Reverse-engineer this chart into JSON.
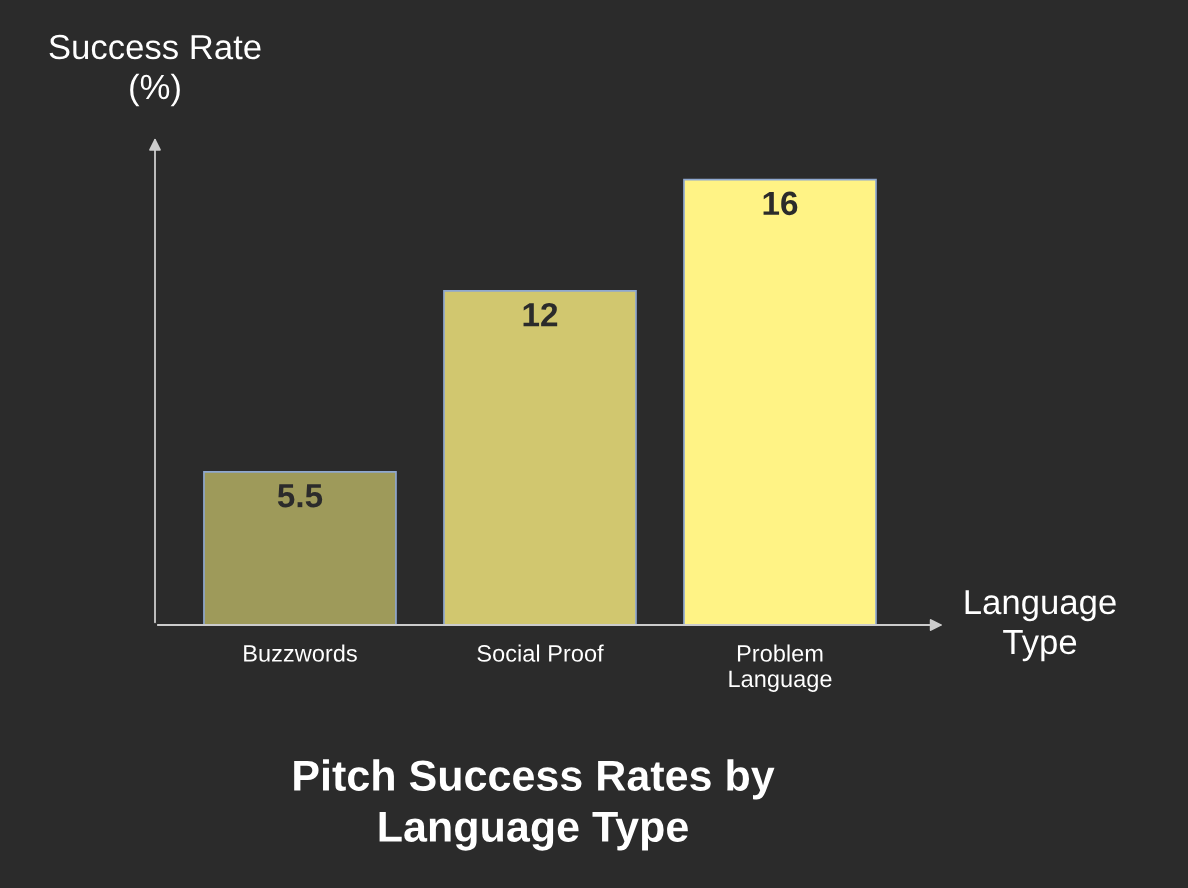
{
  "chart_data": {
    "type": "bar",
    "title": "Pitch Success Rates by\nLanguage Type",
    "xlabel": "Language\nType",
    "ylabel": "Success Rate\n(%)",
    "categories": [
      "Buzzwords",
      "Social Proof",
      "Problem\nLanguage"
    ],
    "values": [
      5.5,
      12,
      16
    ],
    "colors": [
      "#9e9a5a",
      "#d1c76f",
      "#fff385"
    ],
    "data_labels": true,
    "grid": false,
    "legend": false
  }
}
